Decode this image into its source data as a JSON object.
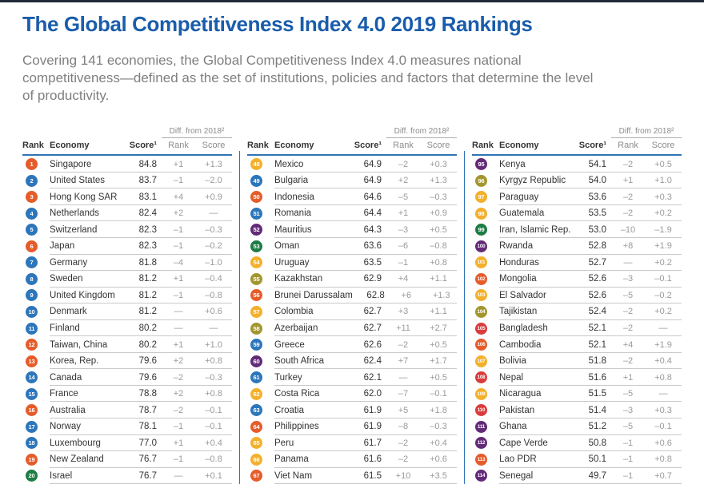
{
  "page": {
    "title": "The Global Competitiveness Index 4.0 2019 Rankings",
    "intro": "Covering 141 economies, the Global Competitiveness Index 4.0 measures national competitiveness—defined as the set of institutions, policies and factors that determine the level of productivity."
  },
  "colors": {
    "title_blue": "#1a5dab",
    "header_rule_blue": "#2e74b5",
    "column_divider_blue": "#2e74b5",
    "row_line_gray": "#c9c9c9",
    "text_dark": "#333333",
    "text_gray": "#9a9a9a",
    "intro_gray": "#7f7f7f"
  },
  "table": {
    "headers": {
      "rank": "Rank",
      "economy": "Economy",
      "score": "Score¹",
      "diff_group": "Diff. from 2018²",
      "diff_rank": "Rank",
      "diff_score": "Score"
    },
    "region_colors": {
      "east_asia_pacific": "#e55c2a",
      "europe_north_america": "#2c76bb",
      "middle_east_north_africa": "#1d7c45",
      "latin_america_caribbean": "#f3b02c",
      "sub_saharan_africa": "#632a78",
      "eurasia": "#a3962e",
      "south_asia": "#da3b3b"
    },
    "columns": [
      {
        "rows": [
          {
            "rank": "1",
            "economy": "Singapore",
            "score": "84.8",
            "diff_rank": "+1",
            "diff_score": "+1.3",
            "region": "east_asia_pacific"
          },
          {
            "rank": "2",
            "economy": "United States",
            "score": "83.7",
            "diff_rank": "–1",
            "diff_score": "–2.0",
            "region": "europe_north_america"
          },
          {
            "rank": "3",
            "economy": "Hong Kong SAR",
            "score": "83.1",
            "diff_rank": "+4",
            "diff_score": "+0.9",
            "region": "east_asia_pacific"
          },
          {
            "rank": "4",
            "economy": "Netherlands",
            "score": "82.4",
            "diff_rank": "+2",
            "diff_score": "—",
            "region": "europe_north_america"
          },
          {
            "rank": "5",
            "economy": "Switzerland",
            "score": "82.3",
            "diff_rank": "–1",
            "diff_score": "–0.3",
            "region": "europe_north_america"
          },
          {
            "rank": "6",
            "economy": "Japan",
            "score": "82.3",
            "diff_rank": "–1",
            "diff_score": "–0.2",
            "region": "east_asia_pacific"
          },
          {
            "rank": "7",
            "economy": "Germany",
            "score": "81.8",
            "diff_rank": "–4",
            "diff_score": "–1.0",
            "region": "europe_north_america"
          },
          {
            "rank": "8",
            "economy": "Sweden",
            "score": "81.2",
            "diff_rank": "+1",
            "diff_score": "–0.4",
            "region": "europe_north_america"
          },
          {
            "rank": "9",
            "economy": "United Kingdom",
            "score": "81.2",
            "diff_rank": "–1",
            "diff_score": "–0.8",
            "region": "europe_north_america"
          },
          {
            "rank": "10",
            "economy": "Denmark",
            "score": "81.2",
            "diff_rank": "—",
            "diff_score": "+0.6",
            "region": "europe_north_america"
          },
          {
            "rank": "11",
            "economy": "Finland",
            "score": "80.2",
            "diff_rank": "—",
            "diff_score": "—",
            "region": "europe_north_america"
          },
          {
            "rank": "12",
            "economy": "Taiwan, China",
            "score": "80.2",
            "diff_rank": "+1",
            "diff_score": "+1.0",
            "region": "east_asia_pacific"
          },
          {
            "rank": "13",
            "economy": "Korea, Rep.",
            "score": "79.6",
            "diff_rank": "+2",
            "diff_score": "+0.8",
            "region": "east_asia_pacific"
          },
          {
            "rank": "14",
            "economy": "Canada",
            "score": "79.6",
            "diff_rank": "–2",
            "diff_score": "–0.3",
            "region": "europe_north_america"
          },
          {
            "rank": "15",
            "economy": "France",
            "score": "78.8",
            "diff_rank": "+2",
            "diff_score": "+0.8",
            "region": "europe_north_america"
          },
          {
            "rank": "16",
            "economy": "Australia",
            "score": "78.7",
            "diff_rank": "–2",
            "diff_score": "–0.1",
            "region": "east_asia_pacific"
          },
          {
            "rank": "17",
            "economy": "Norway",
            "score": "78.1",
            "diff_rank": "–1",
            "diff_score": "–0.1",
            "region": "europe_north_america"
          },
          {
            "rank": "18",
            "economy": "Luxembourg",
            "score": "77.0",
            "diff_rank": "+1",
            "diff_score": "+0.4",
            "region": "europe_north_america"
          },
          {
            "rank": "19",
            "economy": "New Zealand",
            "score": "76.7",
            "diff_rank": "–1",
            "diff_score": "–0.8",
            "region": "east_asia_pacific"
          },
          {
            "rank": "20",
            "economy": "Israel",
            "score": "76.7",
            "diff_rank": "—",
            "diff_score": "+0.1",
            "region": "middle_east_north_africa"
          }
        ]
      },
      {
        "rows": [
          {
            "rank": "48",
            "economy": "Mexico",
            "score": "64.9",
            "diff_rank": "–2",
            "diff_score": "+0.3",
            "region": "latin_america_caribbean"
          },
          {
            "rank": "49",
            "economy": "Bulgaria",
            "score": "64.9",
            "diff_rank": "+2",
            "diff_score": "+1.3",
            "region": "europe_north_america"
          },
          {
            "rank": "50",
            "economy": "Indonesia",
            "score": "64.6",
            "diff_rank": "–5",
            "diff_score": "–0.3",
            "region": "east_asia_pacific"
          },
          {
            "rank": "51",
            "economy": "Romania",
            "score": "64.4",
            "diff_rank": "+1",
            "diff_score": "+0.9",
            "region": "europe_north_america"
          },
          {
            "rank": "52",
            "economy": "Mauritius",
            "score": "64.3",
            "diff_rank": "–3",
            "diff_score": "+0.5",
            "region": "sub_saharan_africa"
          },
          {
            "rank": "53",
            "economy": "Oman",
            "score": "63.6",
            "diff_rank": "–6",
            "diff_score": "–0.8",
            "region": "middle_east_north_africa"
          },
          {
            "rank": "54",
            "economy": "Uruguay",
            "score": "63.5",
            "diff_rank": "–1",
            "diff_score": "+0.8",
            "region": "latin_america_caribbean"
          },
          {
            "rank": "55",
            "economy": "Kazakhstan",
            "score": "62.9",
            "diff_rank": "+4",
            "diff_score": "+1.1",
            "region": "eurasia"
          },
          {
            "rank": "56",
            "economy": "Brunei Darussalam",
            "score": "62.8",
            "diff_rank": "+6",
            "diff_score": "+1.3",
            "region": "east_asia_pacific"
          },
          {
            "rank": "57",
            "economy": "Colombia",
            "score": "62.7",
            "diff_rank": "+3",
            "diff_score": "+1.1",
            "region": "latin_america_caribbean"
          },
          {
            "rank": "58",
            "economy": "Azerbaijan",
            "score": "62.7",
            "diff_rank": "+11",
            "diff_score": "+2.7",
            "region": "eurasia"
          },
          {
            "rank": "59",
            "economy": "Greece",
            "score": "62.6",
            "diff_rank": "–2",
            "diff_score": "+0.5",
            "region": "europe_north_america"
          },
          {
            "rank": "60",
            "economy": "South Africa",
            "score": "62.4",
            "diff_rank": "+7",
            "diff_score": "+1.7",
            "region": "sub_saharan_africa"
          },
          {
            "rank": "61",
            "economy": "Turkey",
            "score": "62.1",
            "diff_rank": "—",
            "diff_score": "+0.5",
            "region": "europe_north_america"
          },
          {
            "rank": "62",
            "economy": "Costa Rica",
            "score": "62.0",
            "diff_rank": "–7",
            "diff_score": "–0.1",
            "region": "latin_america_caribbean"
          },
          {
            "rank": "63",
            "economy": "Croatia",
            "score": "61.9",
            "diff_rank": "+5",
            "diff_score": "+1.8",
            "region": "europe_north_america"
          },
          {
            "rank": "64",
            "economy": "Philippines",
            "score": "61.9",
            "diff_rank": "–8",
            "diff_score": "–0.3",
            "region": "east_asia_pacific"
          },
          {
            "rank": "65",
            "economy": "Peru",
            "score": "61.7",
            "diff_rank": "–2",
            "diff_score": "+0.4",
            "region": "latin_america_caribbean"
          },
          {
            "rank": "66",
            "economy": "Panama",
            "score": "61.6",
            "diff_rank": "–2",
            "diff_score": "+0.6",
            "region": "latin_america_caribbean"
          },
          {
            "rank": "67",
            "economy": "Viet Nam",
            "score": "61.5",
            "diff_rank": "+10",
            "diff_score": "+3.5",
            "region": "east_asia_pacific"
          }
        ]
      },
      {
        "rows": [
          {
            "rank": "95",
            "economy": "Kenya",
            "score": "54.1",
            "diff_rank": "–2",
            "diff_score": "+0.5",
            "region": "sub_saharan_africa"
          },
          {
            "rank": "96",
            "economy": "Kyrgyz Republic",
            "score": "54.0",
            "diff_rank": "+1",
            "diff_score": "+1.0",
            "region": "eurasia"
          },
          {
            "rank": "97",
            "economy": "Paraguay",
            "score": "53.6",
            "diff_rank": "–2",
            "diff_score": "+0.3",
            "region": "latin_america_caribbean"
          },
          {
            "rank": "98",
            "economy": "Guatemala",
            "score": "53.5",
            "diff_rank": "–2",
            "diff_score": "+0.2",
            "region": "latin_america_caribbean"
          },
          {
            "rank": "99",
            "economy": "Iran, Islamic Rep.",
            "score": "53.0",
            "diff_rank": "–10",
            "diff_score": "–1.9",
            "region": "middle_east_north_africa"
          },
          {
            "rank": "100",
            "economy": "Rwanda",
            "score": "52.8",
            "diff_rank": "+8",
            "diff_score": "+1.9",
            "region": "sub_saharan_africa"
          },
          {
            "rank": "101",
            "economy": "Honduras",
            "score": "52.7",
            "diff_rank": "—",
            "diff_score": "+0.2",
            "region": "latin_america_caribbean"
          },
          {
            "rank": "102",
            "economy": "Mongolia",
            "score": "52.6",
            "diff_rank": "–3",
            "diff_score": "–0.1",
            "region": "east_asia_pacific"
          },
          {
            "rank": "103",
            "economy": "El Salvador",
            "score": "52.6",
            "diff_rank": "–5",
            "diff_score": "–0.2",
            "region": "latin_america_caribbean"
          },
          {
            "rank": "104",
            "economy": "Tajikistan",
            "score": "52.4",
            "diff_rank": "–2",
            "diff_score": "+0.2",
            "region": "eurasia"
          },
          {
            "rank": "105",
            "economy": "Bangladesh",
            "score": "52.1",
            "diff_rank": "–2",
            "diff_score": "—",
            "region": "south_asia"
          },
          {
            "rank": "106",
            "economy": "Cambodia",
            "score": "52.1",
            "diff_rank": "+4",
            "diff_score": "+1.9",
            "region": "east_asia_pacific"
          },
          {
            "rank": "107",
            "economy": "Bolivia",
            "score": "51.8",
            "diff_rank": "–2",
            "diff_score": "+0.4",
            "region": "latin_america_caribbean"
          },
          {
            "rank": "108",
            "economy": "Nepal",
            "score": "51.6",
            "diff_rank": "+1",
            "diff_score": "+0.8",
            "region": "south_asia"
          },
          {
            "rank": "109",
            "economy": "Nicaragua",
            "score": "51.5",
            "diff_rank": "–5",
            "diff_score": "—",
            "region": "latin_america_caribbean"
          },
          {
            "rank": "110",
            "economy": "Pakistan",
            "score": "51.4",
            "diff_rank": "–3",
            "diff_score": "+0.3",
            "region": "south_asia"
          },
          {
            "rank": "111",
            "economy": "Ghana",
            "score": "51.2",
            "diff_rank": "–5",
            "diff_score": "–0.1",
            "region": "sub_saharan_africa"
          },
          {
            "rank": "112",
            "economy": "Cape Verde",
            "score": "50.8",
            "diff_rank": "–1",
            "diff_score": "+0.6",
            "region": "sub_saharan_africa"
          },
          {
            "rank": "113",
            "economy": "Lao PDR",
            "score": "50.1",
            "diff_rank": "–1",
            "diff_score": "+0.8",
            "region": "east_asia_pacific"
          },
          {
            "rank": "114",
            "economy": "Senegal",
            "score": "49.7",
            "diff_rank": "–1",
            "diff_score": "+0.7",
            "region": "sub_saharan_africa"
          }
        ]
      }
    ]
  }
}
